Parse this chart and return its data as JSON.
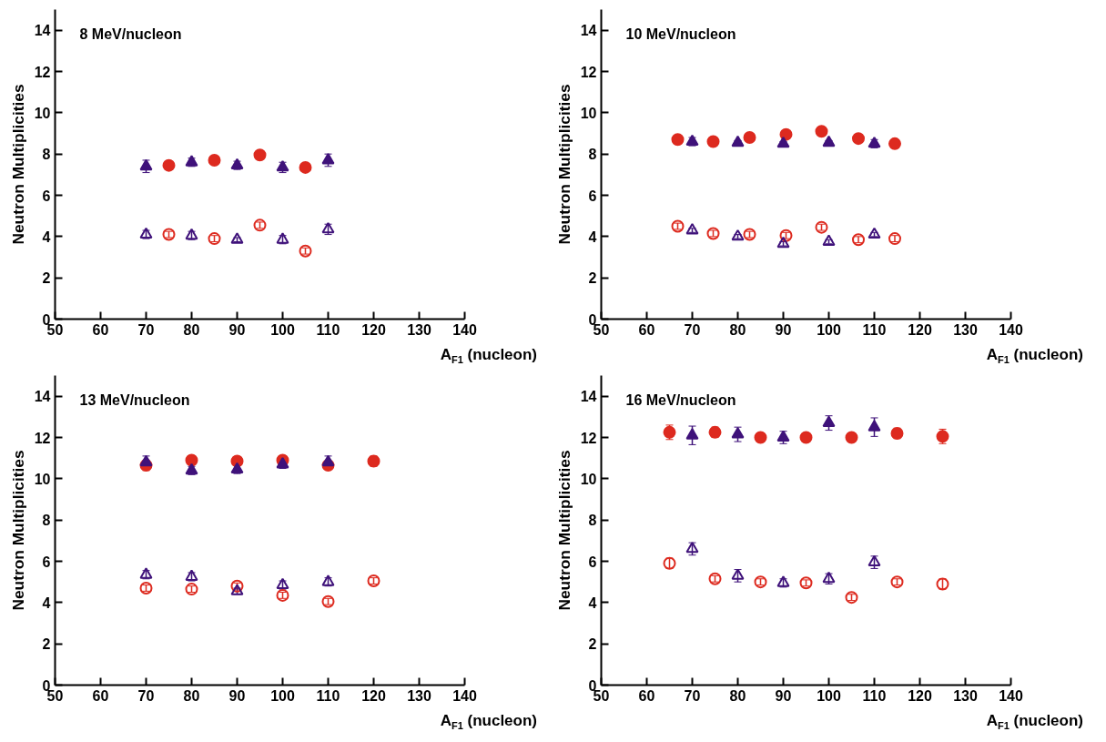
{
  "chart_data": [
    {
      "type": "scatter",
      "title": "8 MeV/nucleon",
      "xlabel": "A$_{F1}$ (nucleon)",
      "ylabel": "Neutron Multiplicities",
      "xlim": [
        50,
        140
      ],
      "ylim": [
        0,
        15
      ],
      "xticks": [
        50,
        60,
        70,
        80,
        90,
        100,
        110,
        120,
        130,
        140
      ],
      "yticks": [
        0,
        2,
        4,
        6,
        8,
        10,
        12,
        14
      ],
      "grid": false,
      "series": [
        {
          "color": "#dd2a1f",
          "marker": "circle",
          "x": [
            75,
            85,
            95,
            105
          ],
          "values": [
            7.45,
            7.7,
            7.95,
            7.35
          ],
          "errors": [
            0.15,
            0.15,
            0.15,
            0.15
          ]
        },
        {
          "color": "#dd2a1f",
          "marker": "circle",
          "x": [
            75,
            85,
            95,
            105
          ],
          "values": [
            4.1,
            3.9,
            4.55,
            3.3
          ],
          "errors": [
            0.15,
            0.15,
            0.15,
            0.15
          ]
        },
        {
          "color": "#3f127a",
          "marker": "triangle",
          "x": [
            70,
            80,
            90,
            100,
            110
          ],
          "values": [
            7.4,
            7.6,
            7.45,
            7.35,
            7.7
          ],
          "errors": [
            0.3,
            0.2,
            0.2,
            0.25,
            0.3
          ]
        },
        {
          "color": "#3f127a",
          "marker": "triangle",
          "x": [
            70,
            80,
            90,
            100,
            110
          ],
          "values": [
            4.1,
            4.05,
            3.85,
            3.85,
            4.35
          ],
          "errors": [
            0.2,
            0.2,
            0.1,
            0.2,
            0.25
          ]
        }
      ]
    },
    {
      "type": "scatter",
      "title": "10 MeV/nucleon",
      "xlabel": "A$_{F1}$ (nucleon)",
      "ylabel": "Neutron Multiplicities",
      "xlim": [
        50,
        140
      ],
      "ylim": [
        0,
        15
      ],
      "xticks": [
        50,
        60,
        70,
        80,
        90,
        100,
        110,
        120,
        130,
        140
      ],
      "yticks": [
        0,
        2,
        4,
        6,
        8,
        10,
        12,
        14
      ],
      "grid": false,
      "series": [
        {
          "color": "#dd2a1f",
          "marker": "circle",
          "x": [
            66.8,
            74.6,
            82.6,
            90.6,
            98.4,
            106.5,
            114.5
          ],
          "values": [
            8.7,
            8.6,
            8.8,
            8.95,
            9.1,
            8.75,
            8.5
          ],
          "errors": [
            0.2,
            0.1,
            0.1,
            0.1,
            0.1,
            0.1,
            0.1
          ]
        },
        {
          "color": "#dd2a1f",
          "marker": "circle",
          "x": [
            66.8,
            74.6,
            82.6,
            90.6,
            98.4,
            106.5,
            114.5
          ],
          "values": [
            4.5,
            4.15,
            4.1,
            4.05,
            4.45,
            3.85,
            3.9
          ],
          "errors": [
            0.15,
            0.15,
            0.15,
            0.15,
            0.15,
            0.15,
            0.15
          ]
        },
        {
          "color": "#3f127a",
          "marker": "triangle",
          "x": [
            70,
            80,
            90,
            100,
            110
          ],
          "values": [
            8.6,
            8.55,
            8.5,
            8.55,
            8.5
          ],
          "errors": [
            0.2,
            0.1,
            0.1,
            0.1,
            0.2
          ]
        },
        {
          "color": "#3f127a",
          "marker": "triangle",
          "x": [
            70,
            80,
            90,
            100,
            110
          ],
          "values": [
            4.3,
            4.0,
            3.65,
            3.75,
            4.1
          ],
          "errors": [
            0.1,
            0.1,
            0.1,
            0.1,
            0.1
          ]
        }
      ]
    },
    {
      "type": "scatter",
      "title": "13 MeV/nucleon",
      "xlabel": "A$_{F1}$ (nucleon)",
      "ylabel": "Neutron Multiplicities",
      "xlim": [
        50,
        140
      ],
      "ylim": [
        0,
        15
      ],
      "xticks": [
        50,
        60,
        70,
        80,
        90,
        100,
        110,
        120,
        130,
        140
      ],
      "yticks": [
        0,
        2,
        4,
        6,
        8,
        10,
        12,
        14
      ],
      "grid": false,
      "series": [
        {
          "color": "#dd2a1f",
          "marker": "circle",
          "x": [
            70,
            80,
            90,
            100,
            110,
            120
          ],
          "values": [
            10.65,
            10.9,
            10.85,
            10.9,
            10.65,
            10.85
          ],
          "errors": [
            0.25,
            0.15,
            0.15,
            0.15,
            0.2,
            0.25
          ]
        },
        {
          "color": "#dd2a1f",
          "marker": "circle",
          "x": [
            70,
            80,
            90,
            100,
            110,
            120
          ],
          "values": [
            4.7,
            4.65,
            4.8,
            4.35,
            4.05,
            5.05
          ],
          "errors": [
            0.15,
            0.15,
            0.15,
            0.15,
            0.15,
            0.15
          ]
        },
        {
          "color": "#3f127a",
          "marker": "triangle",
          "x": [
            70,
            80,
            90,
            100,
            110
          ],
          "values": [
            10.8,
            10.4,
            10.45,
            10.7,
            10.8
          ],
          "errors": [
            0.3,
            0.2,
            0.2,
            0.2,
            0.3
          ]
        },
        {
          "color": "#3f127a",
          "marker": "triangle",
          "x": [
            70,
            80,
            90,
            100,
            110
          ],
          "values": [
            5.35,
            5.25,
            4.55,
            4.85,
            5.0
          ],
          "errors": [
            0.2,
            0.2,
            0.15,
            0.2,
            0.2
          ]
        }
      ]
    },
    {
      "type": "scatter",
      "title": "16 MeV/nucleon",
      "xlabel": "A$_{F1}$ (nucleon)",
      "ylabel": "Neutron Multiplicities",
      "xlim": [
        50,
        140
      ],
      "ylim": [
        0,
        15
      ],
      "xticks": [
        50,
        60,
        70,
        80,
        90,
        100,
        110,
        120,
        130,
        140
      ],
      "yticks": [
        0,
        2,
        4,
        6,
        8,
        10,
        12,
        14
      ],
      "grid": false,
      "series": [
        {
          "color": "#dd2a1f",
          "marker": "circle",
          "x": [
            65,
            75,
            85,
            95,
            105,
            115,
            125
          ],
          "values": [
            12.25,
            12.25,
            12.0,
            12.0,
            12.0,
            12.2,
            12.05
          ],
          "errors": [
            0.35,
            0.25,
            0.2,
            0.15,
            0.15,
            0.25,
            0.35
          ]
        },
        {
          "color": "#dd2a1f",
          "marker": "circle",
          "x": [
            65,
            75,
            85,
            95,
            105,
            115,
            125
          ],
          "values": [
            5.9,
            5.15,
            5.0,
            4.95,
            4.25,
            5.0,
            4.9
          ],
          "errors": [
            0.25,
            0.15,
            0.15,
            0.15,
            0.15,
            0.15,
            0.25
          ]
        },
        {
          "color": "#3f127a",
          "marker": "triangle",
          "x": [
            70,
            80,
            90,
            100,
            110
          ],
          "values": [
            12.1,
            12.15,
            12.0,
            12.7,
            12.5
          ],
          "errors": [
            0.45,
            0.35,
            0.3,
            0.35,
            0.45
          ]
        },
        {
          "color": "#3f127a",
          "marker": "triangle",
          "x": [
            70,
            80,
            90,
            100,
            110
          ],
          "values": [
            6.6,
            5.3,
            4.95,
            5.15,
            5.95
          ],
          "errors": [
            0.3,
            0.3,
            0.2,
            0.25,
            0.3
          ]
        }
      ]
    }
  ]
}
